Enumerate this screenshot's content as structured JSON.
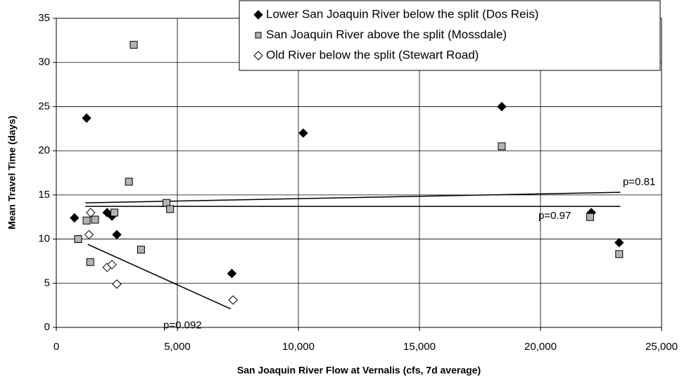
{
  "chart_data": {
    "type": "scatter",
    "x_label": "San Joaquin River Flow at Vernalis (cfs, 7d average)",
    "y_label": "Mean Travel Time (days)",
    "xlim": [
      0,
      25000
    ],
    "xticks": [
      0,
      {
        "value": 5000,
        "label": "5,000"
      },
      {
        "value": 10000,
        "label": "10,000"
      },
      {
        "value": 15000,
        "label": "15,000"
      },
      {
        "value": 20000,
        "label": "20,000"
      },
      {
        "value": 25000,
        "label": "25,000"
      }
    ],
    "ylim": [
      0,
      35
    ],
    "yticks": [
      0,
      5,
      10,
      15,
      20,
      25,
      30,
      35
    ],
    "grid": true,
    "legend": "top-right",
    "series": [
      {
        "name": "Lower San Joaquin River below the split (Dos Reis)",
        "marker": "diamond-filled",
        "color": "#000000",
        "x": [
          750,
          1250,
          2100,
          2300,
          2500,
          7250,
          10200,
          18400,
          22100,
          23250
        ],
        "values": [
          12.4,
          23.7,
          13,
          12.6,
          10.5,
          6.1,
          22,
          25,
          13,
          9.6
        ]
      },
      {
        "name": "San Joaquin River above the split (Mossdale)",
        "marker": "square",
        "color": "#b3b3b3",
        "x": [
          3200,
          900,
          1250,
          1600,
          1400,
          2400,
          3000,
          3500,
          4550,
          4700,
          18400,
          22050,
          23250
        ],
        "values": [
          32,
          10,
          12.1,
          12.2,
          7.4,
          13,
          16.5,
          8.8,
          14.1,
          13.4,
          20.5,
          12.5,
          8.3
        ]
      },
      {
        "name": "Old River below the split (Stewart Road)",
        "marker": "diamond-open",
        "color": "#ffffff",
        "x": [
          1420,
          1350,
          2100,
          2300,
          2500,
          7300
        ],
        "values": [
          13,
          10.5,
          6.8,
          7.1,
          4.9,
          3.1
        ]
      }
    ],
    "trendlines": [
      {
        "label": "p=0.81",
        "x": [
          1200,
          23300
        ],
        "values": [
          14.1,
          15.3
        ]
      },
      {
        "label": "p=0.97",
        "x": [
          1200,
          23300
        ],
        "values": [
          13.7,
          13.7
        ]
      },
      {
        "label": "p=0.092",
        "x": [
          1300,
          7200
        ],
        "values": [
          9.4,
          2.1
        ]
      }
    ]
  }
}
